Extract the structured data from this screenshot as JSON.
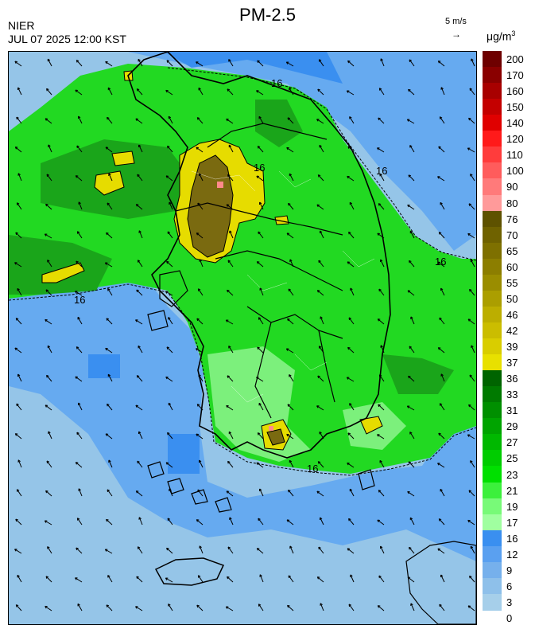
{
  "header": {
    "title": "PM-2.5",
    "agency": "NIER",
    "datetime": "JUL 07 2025 12:00 KST",
    "wind_reference": "5 m/s",
    "wind_arrow": "→",
    "unit_base": "μg/m",
    "unit_exponent": "3"
  },
  "legend": {
    "levels": [
      {
        "label": "200",
        "color": "#6e0000"
      },
      {
        "label": "170",
        "color": "#8a0000"
      },
      {
        "label": "160",
        "color": "#a80000"
      },
      {
        "label": "150",
        "color": "#c40000"
      },
      {
        "label": "140",
        "color": "#e00000"
      },
      {
        "label": "120",
        "color": "#ff1a1a"
      },
      {
        "label": "110",
        "color": "#ff3c3c"
      },
      {
        "label": "100",
        "color": "#ff5c5c"
      },
      {
        "label": "90",
        "color": "#ff7a7a"
      },
      {
        "label": "80",
        "color": "#ff9a9a"
      },
      {
        "label": "76",
        "color": "#5e5200"
      },
      {
        "label": "70",
        "color": "#6f6200"
      },
      {
        "label": "65",
        "color": "#7e7000"
      },
      {
        "label": "60",
        "color": "#8c7e00"
      },
      {
        "label": "55",
        "color": "#9a8d00"
      },
      {
        "label": "50",
        "color": "#ab9e00"
      },
      {
        "label": "46",
        "color": "#bcae00"
      },
      {
        "label": "42",
        "color": "#cbbd00"
      },
      {
        "label": "39",
        "color": "#d9cd00"
      },
      {
        "label": "37",
        "color": "#e8e000"
      },
      {
        "label": "36",
        "color": "#006400"
      },
      {
        "label": "33",
        "color": "#007a00"
      },
      {
        "label": "31",
        "color": "#008f00"
      },
      {
        "label": "29",
        "color": "#00a400"
      },
      {
        "label": "27",
        "color": "#00b800"
      },
      {
        "label": "25",
        "color": "#00cc00"
      },
      {
        "label": "23",
        "color": "#00e000"
      },
      {
        "label": "21",
        "color": "#3cf03c"
      },
      {
        "label": "19",
        "color": "#78fa78"
      },
      {
        "label": "17",
        "color": "#a0ffa0"
      },
      {
        "label": "16",
        "color": "#3a8ff0"
      },
      {
        "label": "12",
        "color": "#5aa0f0"
      },
      {
        "label": "9",
        "color": "#76b0ec"
      },
      {
        "label": "6",
        "color": "#8ec0ea"
      },
      {
        "label": "3",
        "color": "#a6cfea"
      },
      {
        "label": "0",
        "color": ""
      }
    ]
  },
  "map": {
    "contour_value": "16",
    "colors": {
      "sea_light": "#95c5e8",
      "sea_mid": "#66aaf0",
      "sea_dark": "#3a8ff0",
      "land_green": "#22d922",
      "land_dark": "#1aa51a",
      "land_light": "#7cf07c",
      "hot_yellow": "#e6dc00",
      "hot_olive": "#7a6a10",
      "hot_pink": "#ff8a8a"
    }
  }
}
